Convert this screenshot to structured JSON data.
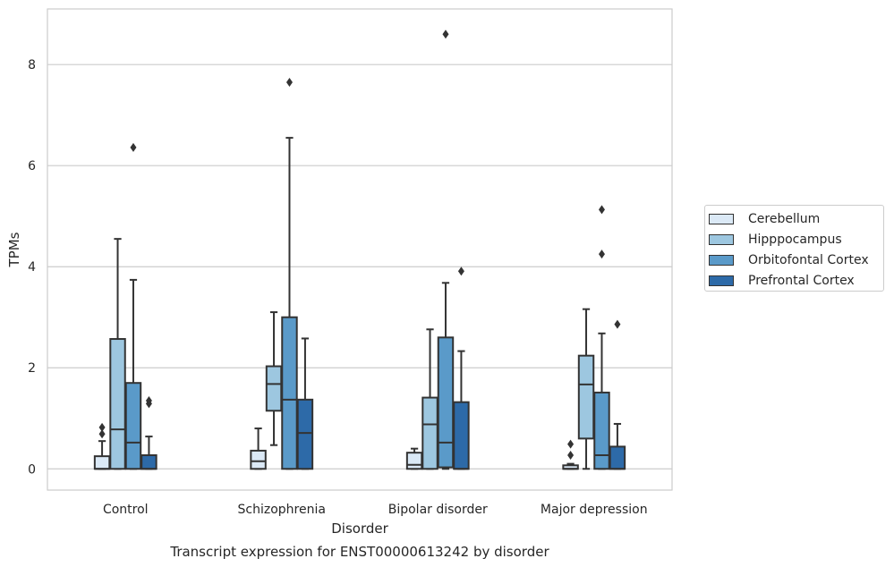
{
  "chart_data": {
    "type": "box",
    "title": "Transcript expression for ENST00000613242 by disorder",
    "xlabel": "Disorder",
    "ylabel": "TPMs",
    "ylim": [
      -0.42,
      9.1
    ],
    "yticks": [
      "0",
      "2",
      "4",
      "6",
      "8"
    ],
    "ytick_values": [
      0,
      2,
      4,
      6,
      8
    ],
    "grid": true,
    "legend_position": "right",
    "categories": [
      "Control",
      "Schizophrenia",
      "Bipolar disorder",
      "Major depression"
    ],
    "series": [
      {
        "name": "Cerebellum",
        "color": "#dbe9f6",
        "boxes": [
          {
            "min": 0.0,
            "q1": 0.0,
            "median": 0.0,
            "q3": 0.25,
            "max": 0.55,
            "outliers": [
              0.69,
              0.82
            ]
          },
          {
            "min": 0.0,
            "q1": 0.0,
            "median": 0.15,
            "q3": 0.36,
            "max": 0.8,
            "outliers": []
          },
          {
            "min": 0.0,
            "q1": 0.0,
            "median": 0.08,
            "q3": 0.32,
            "max": 0.4,
            "outliers": []
          },
          {
            "min": 0.0,
            "q1": 0.0,
            "median": 0.0,
            "q3": 0.07,
            "max": 0.1,
            "outliers": [
              0.27,
              0.49
            ]
          }
        ]
      },
      {
        "name": "Hipppocampus",
        "color": "#9dc7e0",
        "boxes": [
          {
            "min": 0.0,
            "q1": 0.0,
            "median": 0.78,
            "q3": 2.57,
            "max": 4.55,
            "outliers": []
          },
          {
            "min": 0.47,
            "q1": 1.15,
            "median": 1.68,
            "q3": 2.03,
            "max": 3.1,
            "outliers": []
          },
          {
            "min": 0.0,
            "q1": 0.0,
            "median": 0.88,
            "q3": 1.41,
            "max": 2.76,
            "outliers": []
          },
          {
            "min": 0.0,
            "q1": 0.6,
            "median": 1.67,
            "q3": 2.24,
            "max": 3.16,
            "outliers": []
          }
        ]
      },
      {
        "name": "Orbitofontal Cortex",
        "color": "#5a9ac9",
        "boxes": [
          {
            "min": 0.0,
            "q1": 0.0,
            "median": 0.52,
            "q3": 1.7,
            "max": 3.74,
            "outliers": [
              6.36
            ]
          },
          {
            "min": 0.0,
            "q1": 0.0,
            "median": 1.37,
            "q3": 3.0,
            "max": 6.55,
            "outliers": [
              7.65
            ]
          },
          {
            "min": 0.0,
            "q1": 0.03,
            "median": 0.52,
            "q3": 2.6,
            "max": 3.68,
            "outliers": [
              8.6
            ]
          },
          {
            "min": 0.0,
            "q1": 0.0,
            "median": 0.27,
            "q3": 1.51,
            "max": 2.68,
            "outliers": [
              4.25,
              5.13
            ]
          }
        ]
      },
      {
        "name": "Prefrontal Cortex",
        "color": "#2d6aa8",
        "boxes": [
          {
            "min": 0.0,
            "q1": 0.0,
            "median": 0.0,
            "q3": 0.27,
            "max": 0.64,
            "outliers": [
              1.29,
              1.35
            ]
          },
          {
            "min": 0.0,
            "q1": 0.0,
            "median": 0.71,
            "q3": 1.37,
            "max": 2.58,
            "outliers": []
          },
          {
            "min": 0.0,
            "q1": 0.0,
            "median": 0.0,
            "q3": 1.32,
            "max": 2.33,
            "outliers": [
              3.91
            ]
          },
          {
            "min": 0.0,
            "q1": 0.0,
            "median": 0.0,
            "q3": 0.44,
            "max": 0.89,
            "outliers": [
              2.86
            ]
          }
        ]
      }
    ]
  }
}
